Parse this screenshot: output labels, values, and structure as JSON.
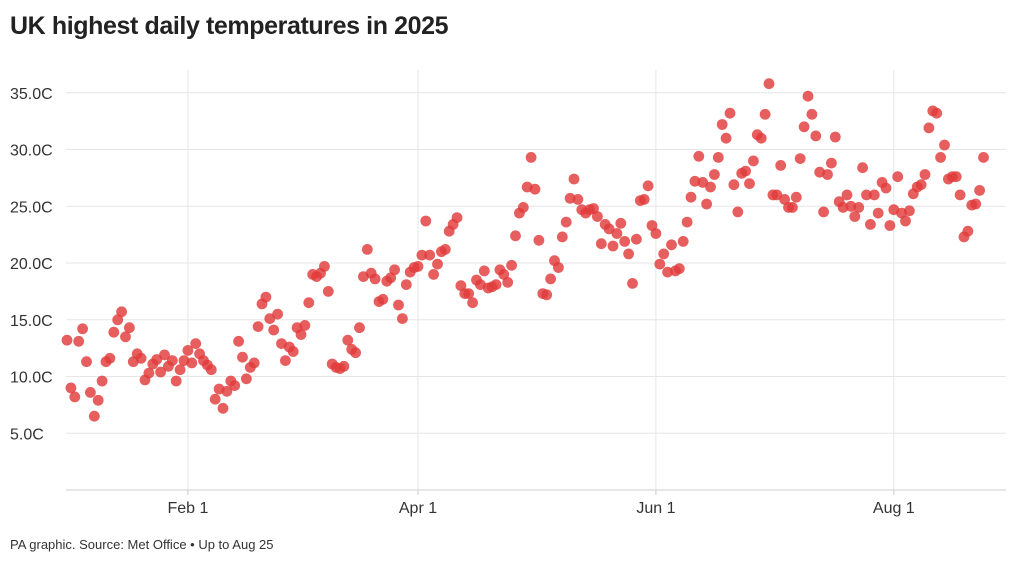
{
  "title": "UK highest daily temperatures in 2025",
  "footer": "PA graphic. Source: Met Office • Up to Aug 25",
  "colors": {
    "point": "#e03a3a",
    "grid": "#e6e6e6",
    "axis": "#cccccc"
  },
  "chart_data": {
    "type": "scatter",
    "title": "UK highest daily temperatures in 2025",
    "xlabel": "",
    "ylabel": "",
    "x_range": [
      "2025-01-01",
      "2025-08-25"
    ],
    "ylim": [
      0,
      37
    ],
    "grid": true,
    "y_ticks": [
      {
        "value": 5,
        "label": "5.0C"
      },
      {
        "value": 10,
        "label": "10.0C"
      },
      {
        "value": 15,
        "label": "15.0C"
      },
      {
        "value": 20,
        "label": "20.0C"
      },
      {
        "value": 25,
        "label": "25.0C"
      },
      {
        "value": 30,
        "label": "30.0C"
      },
      {
        "value": 35,
        "label": "35.0C"
      }
    ],
    "x_ticks": [
      {
        "value": "2025-02-01",
        "label": "Feb 1"
      },
      {
        "value": "2025-04-01",
        "label": "Apr 1"
      },
      {
        "value": "2025-06-01",
        "label": "Jun 1"
      },
      {
        "value": "2025-08-01",
        "label": "Aug 1"
      }
    ],
    "series": [
      {
        "x_start": "2025-01-01",
        "x_step_days": 1,
        "y": [
          13.2,
          9.0,
          8.2,
          13.1,
          14.2,
          11.3,
          8.6,
          6.5,
          7.9,
          9.6,
          11.3,
          11.6,
          13.9,
          15.0,
          15.7,
          13.5,
          14.3,
          11.3,
          12.0,
          11.6,
          9.7,
          10.3,
          11.1,
          11.5,
          10.4,
          11.9,
          10.9,
          11.4,
          9.6,
          10.6,
          11.4,
          12.3,
          11.2,
          12.9,
          12.0,
          11.4,
          11.0,
          10.6,
          8.0,
          8.9,
          7.2,
          8.7,
          9.6,
          9.2,
          13.1,
          11.7,
          9.8,
          10.8,
          11.2,
          14.4,
          16.4,
          17.0,
          15.1,
          14.1,
          15.5,
          12.9,
          11.4,
          12.6,
          12.2,
          14.3,
          13.7,
          14.5,
          16.5,
          19.0,
          18.8,
          19.1,
          19.7,
          17.5,
          11.1,
          10.8,
          10.7,
          10.9,
          13.2,
          12.4,
          12.1,
          14.3,
          18.8,
          21.2,
          19.1,
          18.6,
          16.6,
          16.8,
          18.4,
          18.7,
          19.4,
          16.3,
          15.1,
          18.1,
          19.2,
          19.6,
          19.7,
          20.7,
          23.7,
          20.7,
          19.0,
          19.9,
          21.0,
          21.2,
          22.8,
          23.4,
          24.0,
          18.0,
          17.3,
          17.3,
          16.5,
          18.5,
          18.1,
          19.3,
          17.8,
          17.9,
          18.1,
          19.4,
          19.0,
          18.3,
          19.8,
          22.4,
          24.4,
          24.9,
          26.7,
          29.3,
          26.5,
          22.0,
          17.3,
          17.2,
          18.6,
          20.2,
          19.6,
          22.3,
          23.6,
          25.7,
          27.4,
          25.6,
          24.7,
          24.4,
          24.7,
          24.8,
          24.1,
          21.7,
          23.4,
          23.0,
          21.5,
          22.6,
          23.5,
          21.9,
          20.8,
          18.2,
          22.1,
          25.5,
          25.6,
          26.8,
          23.3,
          22.6,
          19.9,
          20.8,
          19.2,
          21.6,
          19.3,
          19.5,
          21.9,
          23.6,
          25.8,
          27.2,
          29.4,
          27.1,
          25.2,
          26.7,
          27.8,
          29.3,
          32.2,
          31.0,
          33.2,
          26.9,
          24.5,
          27.9,
          28.1,
          27.0,
          29.0,
          31.3,
          31.0,
          33.1,
          35.8,
          26.0,
          26.0,
          28.6,
          25.6,
          24.9,
          24.9,
          25.8,
          29.2,
          32.0,
          34.7,
          33.1,
          31.2,
          28.0,
          24.5,
          27.8,
          28.8,
          31.1,
          25.4,
          24.9,
          26.0,
          25.0,
          24.1,
          24.9,
          28.4,
          26.0,
          23.4,
          26.0,
          24.4,
          27.1,
          26.6,
          23.3,
          24.7,
          27.6,
          24.4,
          23.7,
          24.6,
          26.1,
          26.7,
          26.9,
          27.8,
          31.9,
          33.4,
          33.2,
          29.3,
          30.4,
          27.4,
          27.6,
          27.6,
          26.0,
          22.3,
          22.8,
          25.1,
          25.2,
          26.4,
          29.3
        ]
      }
    ]
  }
}
